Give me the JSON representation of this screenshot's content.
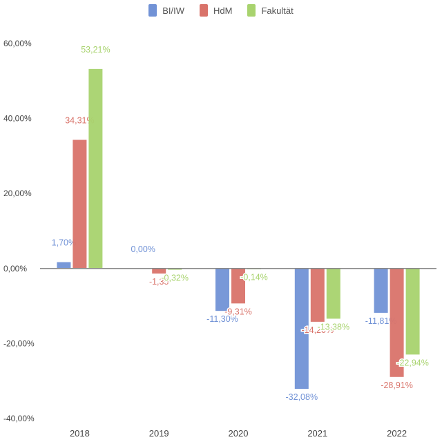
{
  "legend": {
    "items": [
      {
        "label": "BI/IW",
        "color": "#7192d6"
      },
      {
        "label": "HdM",
        "color": "#d9736a"
      },
      {
        "label": "Fakultät",
        "color": "#a8d36e"
      }
    ]
  },
  "chart_data": {
    "type": "bar",
    "categories": [
      "2018",
      "2019",
      "2020",
      "2021",
      "2022"
    ],
    "series": [
      {
        "name": "BI/IW",
        "color": "#7192d6",
        "values": [
          1.7,
          0.0,
          -11.3,
          -32.08,
          -11.81
        ],
        "labels": [
          "1,70%",
          "0,00%",
          "-11,30%",
          "-32,08%",
          "-11,81%"
        ]
      },
      {
        "name": "HdM",
        "color": "#d9736a",
        "values": [
          34.31,
          -1.35,
          -9.31,
          -14.2,
          -28.91
        ],
        "labels": [
          "34,31%",
          "-1,35",
          "-9,31%",
          "-14,20%",
          "-28,91%"
        ]
      },
      {
        "name": "Fakultät",
        "color": "#a8d36e",
        "values": [
          53.21,
          -0.32,
          -0.14,
          -13.38,
          -22.94
        ],
        "labels": [
          "53,21%",
          "-0,32%",
          "-0,14%",
          "-13,38%",
          "-22,94%"
        ]
      }
    ],
    "yticks": [
      60,
      40,
      20,
      0,
      -20,
      -40
    ],
    "ytick_labels": [
      "60,00%",
      "40,00%",
      "20,00%",
      "0,00%",
      "-20,00%",
      "-40,00%"
    ],
    "ylim": [
      -40,
      60
    ],
    "xlabel": "",
    "ylabel": "",
    "title": "",
    "grid": false,
    "legend_position": "top-center"
  }
}
